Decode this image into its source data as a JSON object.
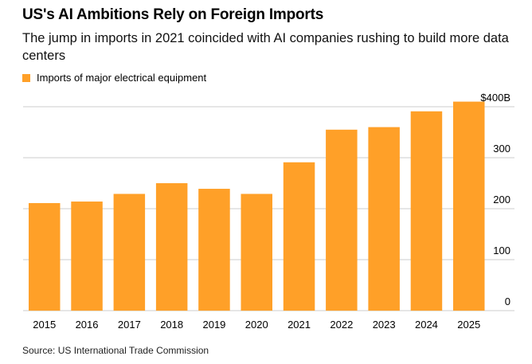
{
  "title": "US's AI Ambitions Rely on Foreign Imports",
  "subtitle": "The jump in imports in 2021 coincided with AI companies rushing to build more data centers",
  "source": "Source: US International Trade Commission",
  "colors": {
    "bar": "#FFA028",
    "grid": "#DDDDDD"
  },
  "chart_data": {
    "type": "bar",
    "categories": [
      "2015",
      "2016",
      "2017",
      "2018",
      "2019",
      "2020",
      "2021",
      "2022",
      "2023",
      "2024",
      "2025"
    ],
    "series": [
      {
        "name": "Imports of major electrical equipment",
        "values": [
          211,
          214,
          229,
          250,
          239,
          229,
          291,
          355,
          360,
          391,
          410
        ]
      }
    ],
    "ylim": [
      0,
      400
    ],
    "yticks": [
      0,
      100,
      200,
      300,
      400
    ],
    "ytick_labels": [
      "0",
      "100",
      "200",
      "300",
      "$400B"
    ],
    "y_axis_position": "right",
    "grid": true,
    "legend_position": "top-left"
  }
}
